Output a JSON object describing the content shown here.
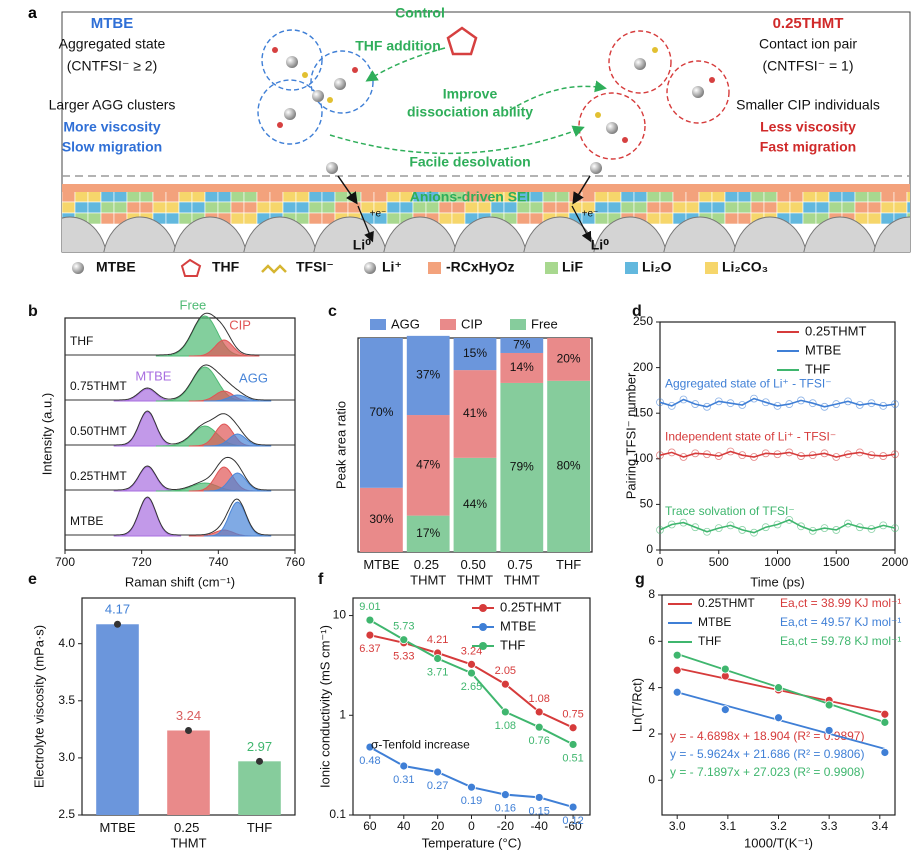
{
  "schematic": {
    "label": "a",
    "left": {
      "title": "MTBE",
      "state": "Aggregated state",
      "cn": "(CNTFSI⁻ ≥ 2)",
      "cluster": "Larger AGG clusters",
      "viscosity": "More viscosity",
      "migration": "Slow migration"
    },
    "center": {
      "control": "Control",
      "addition": "THF addition",
      "improve": "Improve",
      "dissociation": "dissociation ability",
      "desolvation": "Facile desolvation",
      "sei": "Anions-driven SEI",
      "anode": [
        "Li⁰",
        "Li⁰"
      ],
      "electron": [
        "+e⁻",
        "+e⁻"
      ]
    },
    "right": {
      "title": "0.25THMT",
      "state": "Contact ion pair",
      "cn": "(CNTFSI⁻ = 1)",
      "cluster": "Smaller CIP individuals",
      "viscosity": "Less viscosity",
      "migration": "Fast migration"
    },
    "legend": [
      "MTBE",
      "THF",
      "TFSI⁻",
      "Li⁺",
      "-RCxHyOz",
      "LiF",
      "Li₂O",
      "Li₂CO₃"
    ]
  },
  "chart_data": [
    {
      "panel": "b",
      "type": "spectra",
      "xlabel": "Raman shift (cm⁻¹)",
      "ylabel": "Intensity (a.u.)",
      "xlim": [
        700,
        760
      ],
      "xticks": [
        700,
        720,
        740,
        760
      ],
      "samples": [
        "THF",
        "0.75THMT",
        "0.50THMT",
        "0.25THMT",
        "MTBE"
      ],
      "components": [
        {
          "name": "MTBE",
          "color": "#a86ee0",
          "center": 721.5,
          "width": 2.2,
          "heights": [
            null,
            0.3,
            0.85,
            0.6,
            0.95
          ]
        },
        {
          "name": "Free",
          "color": "#4fba74",
          "center": 736.5,
          "width": 3.2,
          "heights": [
            1.0,
            0.85,
            0.5,
            0.2,
            null
          ]
        },
        {
          "name": "CIP",
          "color": "#e05555",
          "center": 741.5,
          "width": 2.3,
          "heights": [
            0.4,
            0.25,
            0.55,
            0.6,
            0.15
          ]
        },
        {
          "name": "AGG",
          "color": "#4a86d8",
          "center": 745,
          "width": 2.2,
          "heights": [
            null,
            0.15,
            0.3,
            0.45,
            0.85
          ]
        }
      ]
    },
    {
      "panel": "c",
      "type": "bar",
      "stacked": true,
      "ylabel": "Peak area ratio",
      "ylim": [
        0,
        100
      ],
      "categories": [
        "MTBE",
        "0.25 THMT",
        "0.50 THMT",
        "0.75 THMT",
        "THF"
      ],
      "series": [
        {
          "name": "AGG",
          "color": "#6b96dc",
          "values": [
            70,
            37,
            15,
            7,
            0
          ],
          "value_labels": [
            "70%",
            "37%",
            "15%",
            "7%",
            null
          ]
        },
        {
          "name": "CIP",
          "color": "#e98a8a",
          "values": [
            30,
            47,
            41,
            14,
            20
          ],
          "value_labels": [
            "30%",
            "47%",
            "41%",
            "14%",
            "20%"
          ]
        },
        {
          "name": "Free",
          "color": "#86cc9c",
          "values": [
            0,
            17,
            44,
            79,
            80
          ],
          "value_labels": [
            null,
            "17%",
            "44%",
            "79%",
            "80%"
          ]
        }
      ]
    },
    {
      "panel": "d",
      "type": "line",
      "xlabel": "Time (ps)",
      "ylabel": "Pairing TFSI⁻ number",
      "xlim": [
        0,
        2000
      ],
      "xticks": [
        0,
        500,
        1000,
        1500,
        2000
      ],
      "ylim": [
        0,
        250
      ],
      "yticks": [
        0,
        50,
        100,
        150,
        200,
        250
      ],
      "legend": "upper right",
      "x": [
        0,
        100,
        200,
        300,
        400,
        500,
        600,
        700,
        800,
        900,
        1000,
        1100,
        1200,
        1300,
        1400,
        1500,
        1600,
        1700,
        1800,
        1900,
        2000
      ],
      "series": [
        {
          "name": "0.25THMT",
          "color": "#d63b3b",
          "annotation": "Independent state of Li⁺ - TFSI⁻",
          "values": [
            104,
            107,
            102,
            106,
            105,
            103,
            108,
            104,
            102,
            106,
            105,
            107,
            103,
            104,
            106,
            102,
            105,
            107,
            104,
            103,
            105
          ]
        },
        {
          "name": "MTBE",
          "color": "#3f7fd6",
          "annotation": "Aggregated state of Li⁺ - TFSI⁻",
          "values": [
            162,
            158,
            165,
            160,
            157,
            163,
            161,
            159,
            166,
            162,
            158,
            160,
            164,
            161,
            157,
            160,
            163,
            159,
            161,
            158,
            160
          ]
        },
        {
          "name": "THF",
          "color": "#3fb66e",
          "annotation": "Trace solvation of TFSI⁻",
          "values": [
            22,
            28,
            30,
            25,
            20,
            24,
            27,
            22,
            19,
            25,
            28,
            33,
            26,
            21,
            24,
            22,
            29,
            25,
            23,
            27,
            24
          ]
        }
      ]
    },
    {
      "panel": "e",
      "type": "bar",
      "ylabel": "Electrolyte viscosity (mPa·s)",
      "ylim": [
        2.5,
        4.4
      ],
      "yticks": [
        2.5,
        {
          "value": 3,
          "label": "3.0"
        },
        3.5,
        {
          "value": 4,
          "label": "4.0"
        }
      ],
      "categories": [
        "MTBE",
        "0.25 THMT",
        "THF"
      ],
      "values": [
        4.17,
        3.24,
        2.97
      ],
      "colors": [
        "#6b96dc",
        "#e98a8a",
        "#86cc9c"
      ],
      "label_colors": [
        "#3f7fd6",
        "#d96060",
        "#3fb66e"
      ]
    },
    {
      "panel": "f",
      "type": "line",
      "ylog": true,
      "xlabel": "Temperature (°C)",
      "ylabel": "Ionic conductivity (mS cm⁻¹)",
      "annotation": "σ-Tenfold increase",
      "legend": "upper right",
      "xlim": [
        70,
        -70
      ],
      "xticks": [
        60,
        40,
        20,
        0,
        -20,
        -40,
        -60
      ],
      "ylim": [
        0.1,
        15
      ],
      "yticks": [
        0.1,
        1,
        10
      ],
      "x": [
        60,
        40,
        20,
        0,
        -20,
        -40,
        -60
      ],
      "series": [
        {
          "name": "0.25THMT",
          "color": "#d63b3b",
          "values": [
            6.37,
            5.33,
            4.21,
            3.24,
            2.05,
            1.08,
            0.75
          ]
        },
        {
          "name": "MTBE",
          "color": "#3f7fd6",
          "values": [
            0.48,
            0.31,
            0.27,
            0.19,
            0.16,
            0.15,
            0.12
          ]
        },
        {
          "name": "THF",
          "color": "#3fb66e",
          "values": [
            9.01,
            5.73,
            3.71,
            2.65,
            1.08,
            0.76,
            0.51
          ]
        }
      ]
    },
    {
      "panel": "g",
      "type": "scatter",
      "xlabel": "1000/T(K⁻¹)",
      "ylabel": "Ln(T/Rct)",
      "xlim": [
        2.97,
        3.43
      ],
      "xticks": [
        {
          "value": 3,
          "label": "3.0"
        },
        3.1,
        3.2,
        3.3,
        3.4
      ],
      "ylim": [
        -1.5,
        8
      ],
      "yticks": [
        0,
        2,
        4,
        6,
        8
      ],
      "legend": "upper left",
      "x": [
        3.0,
        3.095,
        3.2,
        3.3,
        3.41
      ],
      "series": [
        {
          "name": "0.25THMT",
          "color": "#d63b3b",
          "energy": "Ea,ct = 38.99 KJ mol⁻¹",
          "values": [
            4.75,
            4.5,
            3.9,
            3.45,
            2.85
          ],
          "fit": {
            "slope": -4.6898,
            "intercept": 18.904
          },
          "equation": "y = - 4.6898x + 18.904  (R² = 0.9897)"
        },
        {
          "name": "MTBE",
          "color": "#3f7fd6",
          "energy": "Ea,ct = 49.57 KJ mol⁻¹",
          "values": [
            3.8,
            3.05,
            2.7,
            2.15,
            1.2
          ],
          "fit": {
            "slope": -5.9624,
            "intercept": 21.686
          },
          "equation": "y = - 5.9624x + 21.686  (R² = 0.9806)"
        },
        {
          "name": "THF",
          "color": "#3fb66e",
          "energy": "Ea,ct = 59.78 KJ mol⁻¹",
          "values": [
            5.4,
            4.8,
            4.0,
            3.25,
            2.5
          ],
          "fit": {
            "slope": -7.1897,
            "intercept": 27.023
          },
          "equation": "y = - 7.1897x + 27.023  (R² = 0.9908)"
        }
      ]
    }
  ]
}
